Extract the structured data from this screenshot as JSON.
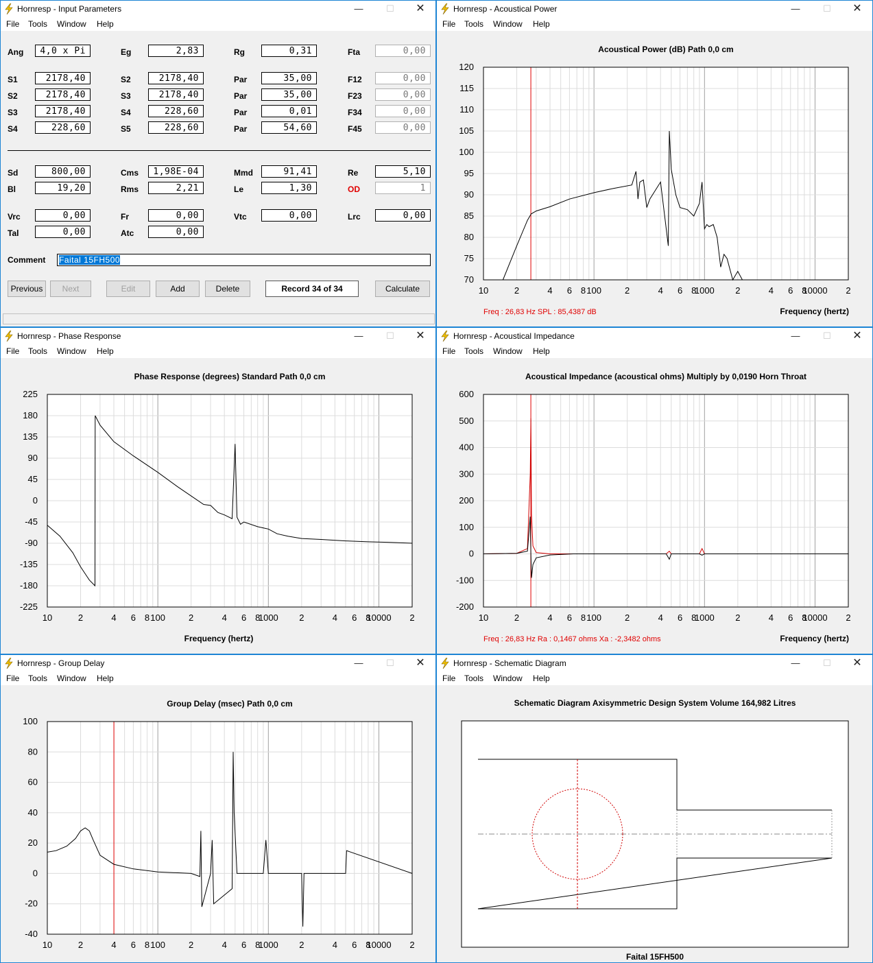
{
  "menus": [
    "File",
    "Tools",
    "Window",
    "Help"
  ],
  "input_window": {
    "title": "Hornresp - Input Parameters",
    "fields": [
      {
        "label": "Ang",
        "value": "4,0 x Pi"
      },
      {
        "label": "Eg",
        "value": "2,83"
      },
      {
        "label": "Rg",
        "value": "0,31"
      },
      {
        "label": "Fta",
        "value": "0,00",
        "disabled": true
      },
      {
        "label": "S1",
        "value": "2178,40"
      },
      {
        "label": "S2",
        "value": "2178,40"
      },
      {
        "label": "Par",
        "value": "35,00"
      },
      {
        "label": "F12",
        "value": "0,00",
        "disabled": true
      },
      {
        "label": "S2",
        "value": "2178,40"
      },
      {
        "label": "S3",
        "value": "2178,40"
      },
      {
        "label": "Par",
        "value": "35,00"
      },
      {
        "label": "F23",
        "value": "0,00",
        "disabled": true
      },
      {
        "label": "S3",
        "value": "2178,40"
      },
      {
        "label": "S4",
        "value": "228,60"
      },
      {
        "label": "Par",
        "value": "0,01"
      },
      {
        "label": "F34",
        "value": "0,00",
        "disabled": true
      },
      {
        "label": "S4",
        "value": "228,60"
      },
      {
        "label": "S5",
        "value": "228,60"
      },
      {
        "label": "Par",
        "value": "54,60"
      },
      {
        "label": "F45",
        "value": "0,00",
        "disabled": true
      },
      {
        "label": "Sd",
        "value": "800,00"
      },
      {
        "label": "Cms",
        "value": "1,98E-04"
      },
      {
        "label": "Mmd",
        "value": "91,41"
      },
      {
        "label": "Re",
        "value": "5,10"
      },
      {
        "label": "Bl",
        "value": "19,20"
      },
      {
        "label": "Rms",
        "value": "2,21"
      },
      {
        "label": "Le",
        "value": "1,30"
      },
      {
        "label": "OD",
        "value": "1",
        "disabled": true,
        "red": true
      },
      {
        "label": "Vrc",
        "value": "0,00"
      },
      {
        "label": "Fr",
        "value": "0,00"
      },
      {
        "label": "Vtc",
        "value": "0,00"
      },
      {
        "label": "Lrc",
        "value": "0,00"
      },
      {
        "label": "Tal",
        "value": "0,00"
      },
      {
        "label": "Atc",
        "value": "0,00"
      }
    ],
    "comment_label": "Comment",
    "comment_value": "Faital 15FH500",
    "buttons": {
      "previous": "Previous",
      "next": "Next",
      "edit": "Edit",
      "add": "Add",
      "delete": "Delete",
      "record": "Record 34 of 34",
      "calculate": "Calculate"
    }
  },
  "power_window": {
    "title": "Hornresp - Acoustical Power"
  },
  "phase_window": {
    "title": "Hornresp - Phase Response"
  },
  "impedance_window": {
    "title": "Hornresp - Acoustical Impedance"
  },
  "delay_window": {
    "title": "Hornresp - Group Delay"
  },
  "schematic_window": {
    "title": "Hornresp - Schematic Diagram",
    "heading": "Schematic Diagram   Axisymmetric Design   System Volume 164,982 Litres",
    "caption": "Faital 15FH500"
  },
  "freq_ticks": [
    "10",
    "2",
    "4",
    "6",
    "8",
    "100",
    "2",
    "4",
    "6",
    "8",
    "1000",
    "2",
    "4",
    "6",
    "8",
    "10000",
    "2"
  ],
  "colors": {
    "red_cursor": "#e00000",
    "title_accent": "#f0c000"
  },
  "chart_data": [
    {
      "type": "line",
      "title": "Acoustical Power (dB)   Path 0,0 cm",
      "xlabel": "Frequency (hertz)",
      "x_scale": "log",
      "xlim": [
        10,
        20000
      ],
      "ylim": [
        70,
        120
      ],
      "y_ticks": [
        "120",
        "115",
        "110",
        "105",
        "100",
        "95",
        "90",
        "85",
        "80",
        "75",
        "70"
      ],
      "readout": "Freq : 26,83 Hz     SPL : 85,4387 dB",
      "cursor_x": 26.83,
      "series": [
        {
          "x": [
            15,
            20,
            25,
            27,
            30,
            40,
            60,
            100,
            150,
            220,
            240,
            250,
            260,
            280,
            300,
            320,
            400,
            470,
            480,
            500,
            550,
            600,
            700,
            800,
            900,
            950,
            1000,
            1050,
            1100,
            1200,
            1300,
            1400,
            1500,
            1600,
            1800,
            2000,
            2200,
            2500,
            2700,
            3000
          ],
          "y": [
            70,
            78,
            84,
            85.5,
            86.2,
            87.2,
            89,
            90.5,
            91.5,
            92.3,
            95.5,
            89,
            93,
            93.5,
            87,
            89,
            93,
            78,
            105,
            96,
            90,
            87,
            86.5,
            85,
            88,
            93,
            82,
            83,
            82.5,
            83,
            80,
            73,
            76,
            75,
            70,
            72,
            70,
            70,
            70,
            70
          ]
        }
      ]
    },
    {
      "type": "line",
      "title": "Phase Response (degrees)   Standard   Path 0,0 cm",
      "xlabel": "Frequency (hertz)",
      "x_scale": "log",
      "xlim": [
        10,
        20000
      ],
      "ylim": [
        -225,
        225
      ],
      "y_ticks": [
        "225",
        "180",
        "135",
        "90",
        "45",
        "0",
        "-45",
        "-90",
        "-135",
        "-180",
        "-225"
      ],
      "series": [
        {
          "x": [
            10,
            13,
            17,
            20,
            24,
            27,
            27.1,
            30,
            40,
            60,
            100,
            150,
            200,
            260,
            300,
            350,
            400,
            470,
            500,
            520,
            560,
            600,
            800,
            1000,
            1200,
            1500,
            2000,
            3000,
            5000,
            8000,
            12000,
            20000
          ],
          "y": [
            -52,
            -75,
            -110,
            -140,
            -168,
            -180,
            180,
            160,
            125,
            95,
            60,
            30,
            10,
            -8,
            -10,
            -25,
            -30,
            -38,
            120,
            -35,
            -50,
            -45,
            -55,
            -60,
            -70,
            -75,
            -80,
            -82,
            -85,
            -87,
            -88,
            -90
          ]
        }
      ]
    },
    {
      "type": "line",
      "title": "Acoustical Impedance (acoustical ohms)   Multiply by 0,0190   Horn Throat",
      "xlabel": "Frequency (hertz)",
      "x_scale": "log",
      "xlim": [
        10,
        20000
      ],
      "ylim": [
        -200,
        600
      ],
      "y_ticks": [
        "600",
        "500",
        "400",
        "300",
        "200",
        "100",
        "0",
        "-100",
        "-200"
      ],
      "readout": "Freq : 26,83 Hz     Ra : 0,1467 ohms     Xa : -2,3482 ohms",
      "cursor_x": 26.83,
      "series": [
        {
          "name": "Ra",
          "x": [
            10,
            20,
            25,
            26.5,
            26.83,
            27.2,
            28,
            30,
            40,
            60,
            450,
            480,
            500,
            900,
            950,
            1000,
            20000
          ],
          "y": [
            0,
            2,
            20,
            300,
            510,
            150,
            30,
            5,
            0,
            0,
            0,
            10,
            0,
            0,
            20,
            0,
            0
          ]
        },
        {
          "name": "Xa",
          "x": [
            10,
            20,
            25,
            26.5,
            26.83,
            27.2,
            28,
            30,
            40,
            65,
            450,
            480,
            500,
            900,
            950,
            1000,
            20000
          ],
          "y": [
            0,
            2,
            10,
            140,
            0,
            -90,
            -40,
            -15,
            -4,
            0,
            0,
            -20,
            0,
            0,
            -5,
            0,
            0
          ]
        }
      ]
    },
    {
      "type": "line",
      "title": "Group Delay (msec)   Path 0,0 cm",
      "xlabel": "Frequency (hertz)",
      "x_scale": "log",
      "xlim": [
        10,
        20000
      ],
      "ylim": [
        -40,
        100
      ],
      "y_ticks": [
        "100",
        "80",
        "60",
        "40",
        "20",
        "0",
        "-20",
        "-40"
      ],
      "cursor_x": 40.04,
      "series": [
        {
          "x": [
            10,
            12,
            15,
            18,
            20,
            22,
            24,
            26,
            30,
            40,
            60,
            100,
            200,
            240,
            245,
            250,
            300,
            310,
            320,
            470,
            480,
            490,
            520,
            900,
            950,
            1000,
            2000,
            2050,
            2100,
            5000,
            5100,
            20000
          ],
          "y": [
            14,
            15,
            18,
            23,
            28,
            30,
            28,
            22,
            12,
            6,
            3,
            1,
            0,
            -2,
            28,
            -22,
            0,
            22,
            -20,
            -10,
            80,
            40,
            0,
            0,
            22,
            0,
            0,
            -35,
            0,
            0,
            15,
            0
          ]
        }
      ]
    }
  ]
}
